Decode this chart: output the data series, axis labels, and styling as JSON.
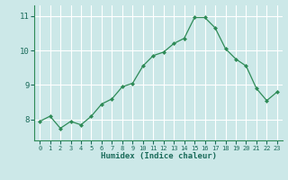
{
  "xlabel": "Humidex (Indice chaleur)",
  "ylabel": "",
  "x_values": [
    0,
    1,
    2,
    3,
    4,
    5,
    6,
    7,
    8,
    9,
    10,
    11,
    12,
    13,
    14,
    15,
    16,
    17,
    18,
    19,
    20,
    21,
    22,
    23
  ],
  "y_values": [
    7.95,
    8.1,
    7.75,
    7.95,
    7.85,
    8.1,
    8.45,
    8.6,
    8.95,
    9.05,
    9.55,
    9.85,
    9.95,
    10.2,
    10.35,
    10.95,
    10.95,
    10.65,
    10.05,
    9.75,
    9.55,
    8.9,
    8.55,
    8.8
  ],
  "line_color": "#2e8b57",
  "marker_color": "#2e8b57",
  "bg_color": "#cce8e8",
  "grid_color": "#ffffff",
  "axis_color": "#2e8b57",
  "ylim": [
    7.4,
    11.3
  ],
  "yticks": [
    8,
    9,
    10,
    11
  ],
  "xticks": [
    0,
    1,
    2,
    3,
    4,
    5,
    6,
    7,
    8,
    9,
    10,
    11,
    12,
    13,
    14,
    15,
    16,
    17,
    18,
    19,
    20,
    21,
    22,
    23
  ],
  "tick_label_color": "#1a6b5a",
  "label_color": "#1a6b5a",
  "spine_color": "#2e8b57"
}
